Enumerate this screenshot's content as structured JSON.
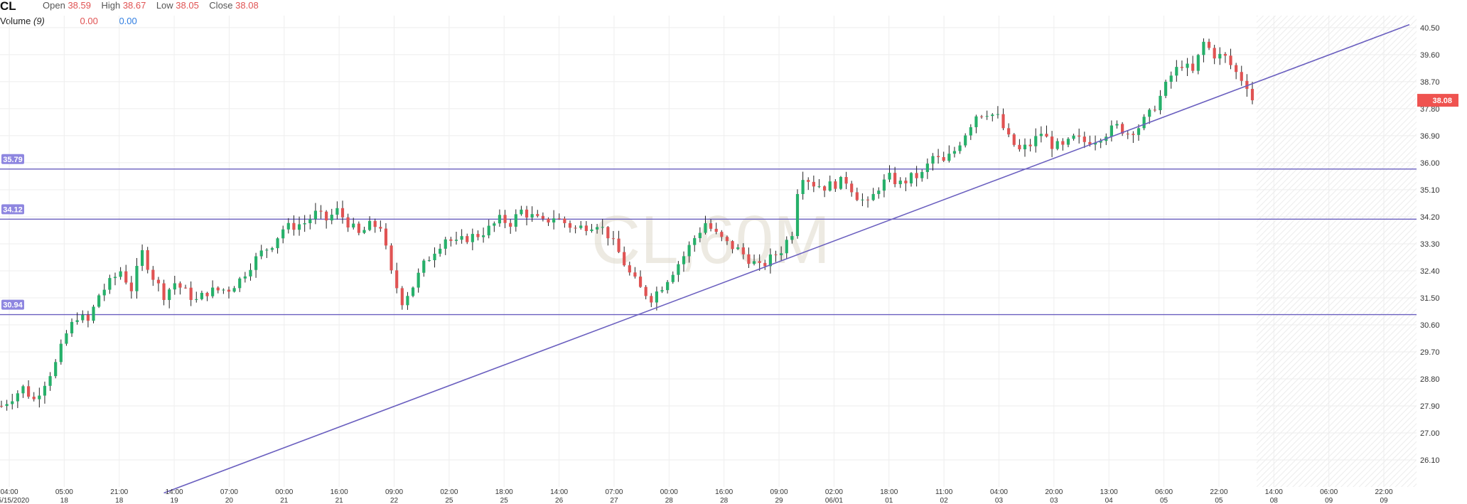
{
  "header": {
    "symbol": "CL",
    "open_label": "Open",
    "open_value": "38.59",
    "high_label": "High",
    "high_value": "38.67",
    "low_label": "Low",
    "low_value": "38.05",
    "close_label": "Close",
    "close_value": "38.08",
    "volume_label": "Volume",
    "volume_period": "(9)",
    "volume_value_1": "0.00",
    "volume_value_2": "0.00"
  },
  "watermark": "CL,60M",
  "colors": {
    "up": "#26b06a",
    "down": "#e05353",
    "line": "#6a5fbf",
    "grid": "#eeeeee",
    "price_badge": "#ef5350",
    "level_badge": "#8e86e0"
  },
  "chart_data": {
    "type": "candlestick",
    "symbol": "CL",
    "interval": "60M",
    "y_axis": {
      "ticks": [
        "40.50",
        "39.60",
        "38.70",
        "37.80",
        "36.90",
        "36.00",
        "35.10",
        "34.20",
        "33.30",
        "32.40",
        "31.50",
        "30.60",
        "29.70",
        "28.80",
        "27.90",
        "27.00",
        "26.10"
      ],
      "range": [
        25.2,
        40.9
      ]
    },
    "x_axis": {
      "ticks": [
        {
          "time": "04:00",
          "date": "05/15/2020"
        },
        {
          "time": "05:00",
          "date": "18"
        },
        {
          "time": "21:00",
          "date": "18"
        },
        {
          "time": "14:00",
          "date": "19"
        },
        {
          "time": "07:00",
          "date": "20"
        },
        {
          "time": "00:00",
          "date": "21"
        },
        {
          "time": "16:00",
          "date": "21"
        },
        {
          "time": "09:00",
          "date": "22"
        },
        {
          "time": "02:00",
          "date": "25"
        },
        {
          "time": "18:00",
          "date": "25"
        },
        {
          "time": "14:00",
          "date": "26"
        },
        {
          "time": "07:00",
          "date": "27"
        },
        {
          "time": "00:00",
          "date": "28"
        },
        {
          "time": "16:00",
          "date": "28"
        },
        {
          "time": "09:00",
          "date": "29"
        },
        {
          "time": "02:00",
          "date": "06/01"
        },
        {
          "time": "18:00",
          "date": "01"
        },
        {
          "time": "11:00",
          "date": "02"
        },
        {
          "time": "04:00",
          "date": "03"
        },
        {
          "time": "20:00",
          "date": "03"
        },
        {
          "time": "13:00",
          "date": "04"
        },
        {
          "time": "06:00",
          "date": "05"
        },
        {
          "time": "22:00",
          "date": "05"
        },
        {
          "time": "14:00",
          "date": "08"
        },
        {
          "time": "06:00",
          "date": "09"
        },
        {
          "time": "22:00",
          "date": "09"
        }
      ]
    },
    "series_path": [
      [
        0,
        27.9
      ],
      [
        4,
        28.5
      ],
      [
        6,
        28.1
      ],
      [
        10,
        29.3
      ],
      [
        12,
        30.3
      ],
      [
        14,
        30.9
      ],
      [
        16,
        30.7
      ],
      [
        18,
        31.6
      ],
      [
        20,
        32.0
      ],
      [
        22,
        32.4
      ],
      [
        24,
        31.8
      ],
      [
        26,
        33.0
      ],
      [
        28,
        32.2
      ],
      [
        30,
        31.6
      ],
      [
        32,
        32.0
      ],
      [
        34,
        31.7
      ],
      [
        36,
        31.4
      ],
      [
        38,
        31.7
      ],
      [
        42,
        31.8
      ],
      [
        44,
        32.1
      ],
      [
        46,
        32.6
      ],
      [
        48,
        33.0
      ],
      [
        50,
        33.3
      ],
      [
        52,
        33.8
      ],
      [
        56,
        34.0
      ],
      [
        58,
        34.3
      ],
      [
        60,
        34.1
      ],
      [
        62,
        34.4
      ],
      [
        64,
        34.0
      ],
      [
        66,
        33.6
      ],
      [
        68,
        33.9
      ],
      [
        70,
        33.9
      ],
      [
        72,
        32.3
      ],
      [
        74,
        31.4
      ],
      [
        76,
        31.9
      ],
      [
        78,
        32.6
      ],
      [
        80,
        33.1
      ],
      [
        82,
        33.5
      ],
      [
        84,
        33.3
      ],
      [
        86,
        33.5
      ],
      [
        88,
        33.6
      ],
      [
        90,
        33.8
      ],
      [
        92,
        34.1
      ],
      [
        94,
        34.0
      ],
      [
        96,
        34.4
      ],
      [
        98,
        34.2
      ],
      [
        100,
        34.0
      ],
      [
        102,
        34.2
      ],
      [
        104,
        34.0
      ],
      [
        106,
        33.8
      ],
      [
        110,
        34.0
      ],
      [
        112,
        33.6
      ],
      [
        114,
        33.0
      ],
      [
        116,
        32.3
      ],
      [
        118,
        31.8
      ],
      [
        120,
        31.5
      ],
      [
        122,
        31.9
      ],
      [
        124,
        32.4
      ],
      [
        126,
        32.9
      ],
      [
        128,
        33.5
      ],
      [
        130,
        34.0
      ],
      [
        132,
        33.6
      ],
      [
        134,
        33.3
      ],
      [
        136,
        33.1
      ],
      [
        138,
        32.8
      ],
      [
        140,
        32.5
      ],
      [
        142,
        32.8
      ],
      [
        144,
        33.1
      ],
      [
        146,
        33.7
      ],
      [
        147,
        35.1
      ],
      [
        148,
        35.6
      ],
      [
        150,
        35.3
      ],
      [
        152,
        35.2
      ],
      [
        156,
        35.4
      ],
      [
        158,
        34.9
      ],
      [
        160,
        34.6
      ],
      [
        162,
        35.2
      ],
      [
        164,
        35.5
      ],
      [
        166,
        35.3
      ],
      [
        168,
        35.5
      ],
      [
        170,
        35.6
      ],
      [
        172,
        36.2
      ],
      [
        174,
        36.0
      ],
      [
        176,
        36.4
      ],
      [
        178,
        37.0
      ],
      [
        180,
        37.6
      ],
      [
        182,
        37.7
      ],
      [
        184,
        37.5
      ],
      [
        186,
        36.8
      ],
      [
        188,
        36.4
      ],
      [
        190,
        36.6
      ],
      [
        192,
        37.0
      ],
      [
        194,
        36.6
      ],
      [
        196,
        36.5
      ],
      [
        198,
        36.8
      ],
      [
        200,
        36.7
      ],
      [
        202,
        36.8
      ],
      [
        204,
        37.0
      ],
      [
        206,
        37.2
      ],
      [
        208,
        37.0
      ],
      [
        210,
        37.2
      ],
      [
        212,
        37.6
      ],
      [
        214,
        38.2
      ],
      [
        216,
        38.9
      ],
      [
        218,
        39.3
      ],
      [
        220,
        39.0
      ],
      [
        222,
        40.0
      ],
      [
        224,
        39.6
      ],
      [
        226,
        39.5
      ],
      [
        228,
        39.0
      ],
      [
        230,
        38.6
      ],
      [
        231,
        38.08
      ]
    ],
    "current_price": "38.08",
    "horizontal_levels": [
      {
        "label": "35.79",
        "value": 35.79
      },
      {
        "label": "34.12",
        "value": 34.12
      },
      {
        "label": "30.94",
        "value": 30.94
      }
    ],
    "trendline": {
      "from": {
        "bar": 30,
        "value": 25.0
      },
      "to": {
        "bar": 260,
        "value": 40.6
      }
    },
    "total_bars": 231,
    "grid": true
  }
}
